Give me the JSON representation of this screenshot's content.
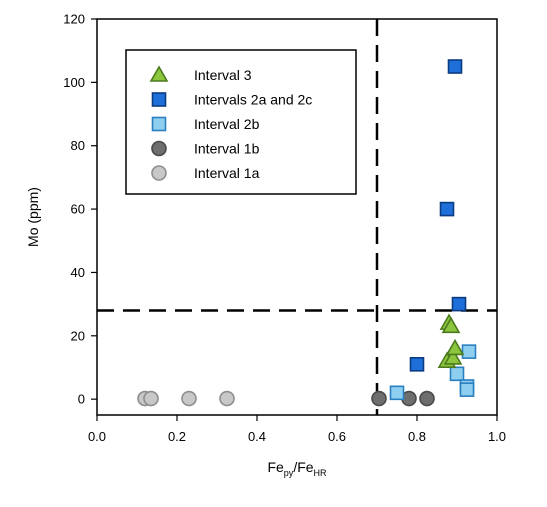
{
  "chart_data": {
    "type": "scatter",
    "title": "",
    "xlabel": {
      "main": "Fe",
      "sub1": "py",
      "mid": "/Fe",
      "sub2": "HR"
    },
    "ylabel": "Mo (ppm)",
    "xlim": [
      0.0,
      1.0
    ],
    "ylim": [
      -5,
      120
    ],
    "xticks": [
      "0.0",
      "0.2",
      "0.4",
      "0.6",
      "0.8",
      "1.0"
    ],
    "xtick_values": [
      0.0,
      0.2,
      0.4,
      0.6,
      0.8,
      1.0
    ],
    "yticks": [
      "0",
      "20",
      "40",
      "60",
      "80",
      "100",
      "120"
    ],
    "ytick_values": [
      0,
      20,
      40,
      60,
      80,
      100,
      120
    ],
    "grid": false,
    "legend_position": "top-left",
    "thresholds": {
      "x": 0.7,
      "y": 28
    },
    "series": [
      {
        "name": "Interval 3",
        "marker": "triangle",
        "color": "#8cc63f",
        "stroke": "#4d7a1e",
        "points": [
          [
            0.875,
            12
          ],
          [
            0.88,
            24
          ],
          [
            0.885,
            23
          ],
          [
            0.89,
            13
          ],
          [
            0.895,
            16
          ]
        ]
      },
      {
        "name": "Intervals 2a and 2c",
        "marker": "square",
        "color": "#1e6fd9",
        "stroke": "#0b3b80",
        "points": [
          [
            0.8,
            11
          ],
          [
            0.875,
            60
          ],
          [
            0.895,
            105
          ],
          [
            0.905,
            30
          ]
        ]
      },
      {
        "name": "Interval 2b",
        "marker": "square",
        "color": "#8ecff0",
        "stroke": "#2a7fc0",
        "points": [
          [
            0.75,
            2
          ],
          [
            0.9,
            8
          ],
          [
            0.925,
            4
          ],
          [
            0.925,
            3
          ],
          [
            0.93,
            15
          ]
        ]
      },
      {
        "name": "Interval 1b",
        "marker": "circle",
        "color": "#6e6e6e",
        "stroke": "#4a4a4a",
        "points": [
          [
            0.705,
            0.2
          ],
          [
            0.78,
            0.2
          ],
          [
            0.825,
            0.2
          ]
        ]
      },
      {
        "name": "Interval 1a",
        "marker": "circle",
        "color": "#c8c8c8",
        "stroke": "#8e8e8e",
        "points": [
          [
            0.12,
            0.2
          ],
          [
            0.135,
            0.2
          ],
          [
            0.23,
            0.2
          ],
          [
            0.325,
            0.2
          ]
        ]
      }
    ]
  }
}
